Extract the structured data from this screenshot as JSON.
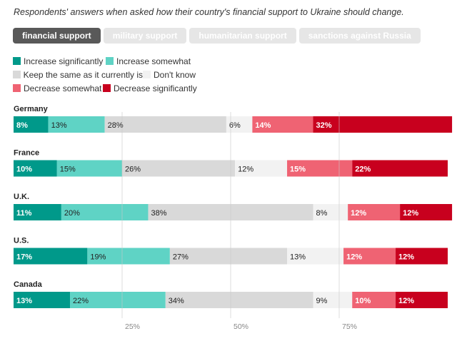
{
  "subtitle": "Respondents' answers when asked how their country's financial support to Ukraine should change.",
  "tabs": [
    {
      "label": "financial support",
      "active": true
    },
    {
      "label": "military support",
      "active": false
    },
    {
      "label": "humanitarian support",
      "active": false
    },
    {
      "label": "sanctions against Russia",
      "active": false
    }
  ],
  "legend": [
    {
      "label": "Increase significantly",
      "color": "#00998a"
    },
    {
      "label": "Increase somewhat",
      "color": "#5fd3c5"
    },
    {
      "label": "Keep the same as it currently is",
      "color": "#d9d9d9"
    },
    {
      "label": "Don't know",
      "color": "#f2f2f2"
    },
    {
      "label": "Decrease somewhat",
      "color": "#ef6373"
    },
    {
      "label": "Decrease significantly",
      "color": "#c8001e"
    }
  ],
  "chart_data": {
    "type": "bar",
    "orientation": "horizontal",
    "stacked": true,
    "categories": [
      "Germany",
      "France",
      "U.K.",
      "U.S.",
      "Canada"
    ],
    "series": [
      {
        "name": "Increase significantly",
        "color": "#00998a",
        "label_color": "#ffffff",
        "bold": true,
        "values": [
          8,
          10,
          11,
          17,
          13
        ]
      },
      {
        "name": "Increase somewhat",
        "color": "#5fd3c5",
        "label_color": "#222222",
        "bold": false,
        "values": [
          13,
          15,
          20,
          19,
          22
        ]
      },
      {
        "name": "Keep the same as it currently is",
        "color": "#d9d9d9",
        "label_color": "#222222",
        "bold": false,
        "values": [
          28,
          26,
          38,
          27,
          34
        ]
      },
      {
        "name": "Don't know",
        "color": "#f2f2f2",
        "label_color": "#222222",
        "bold": false,
        "values": [
          6,
          12,
          8,
          13,
          9
        ]
      },
      {
        "name": "Decrease somewhat",
        "color": "#ef6373",
        "label_color": "#ffffff",
        "bold": true,
        "values": [
          14,
          15,
          12,
          12,
          10
        ]
      },
      {
        "name": "Decrease significantly",
        "color": "#c8001e",
        "label_color": "#ffffff",
        "bold": true,
        "values": [
          32,
          22,
          12,
          12,
          12
        ]
      }
    ],
    "value_suffix": "%",
    "gridlines": [
      25,
      50,
      75
    ],
    "gridline_labels": [
      "25%",
      "50%",
      "75%"
    ],
    "xlim": [
      0,
      100
    ]
  }
}
